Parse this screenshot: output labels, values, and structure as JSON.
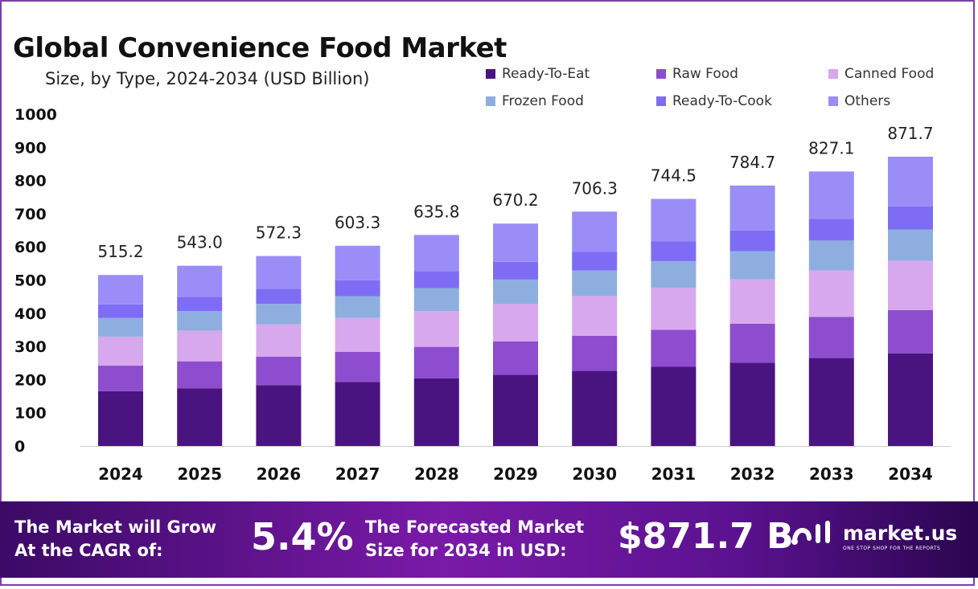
{
  "header": {
    "title": "Global Convenience Food Market",
    "subtitle": "Size, by Type, 2024-2034 (USD Billion)"
  },
  "chart_data": {
    "type": "bar",
    "stacked": true,
    "categories": [
      "2024",
      "2025",
      "2026",
      "2027",
      "2028",
      "2029",
      "2030",
      "2031",
      "2032",
      "2033",
      "2034"
    ],
    "totals": [
      "515.2",
      "543.0",
      "572.3",
      "603.3",
      "635.8",
      "670.2",
      "706.3",
      "744.5",
      "784.7",
      "827.1",
      "871.7"
    ],
    "series": [
      {
        "name": "Ready-To-Eat",
        "color": "#4a1480",
        "values": [
          165.0,
          173.9,
          183.3,
          193.2,
          203.6,
          214.6,
          226.2,
          238.5,
          251.3,
          264.9,
          279.2
        ]
      },
      {
        "name": "Raw Food",
        "color": "#8e4ccf",
        "values": [
          77.0,
          81.2,
          85.6,
          90.2,
          95.1,
          100.2,
          105.6,
          111.3,
          117.3,
          123.7,
          130.3
        ]
      },
      {
        "name": "Canned Food",
        "color": "#d7a8ee",
        "values": [
          87.5,
          92.2,
          97.2,
          102.5,
          108.0,
          113.8,
          120.0,
          126.4,
          133.3,
          140.5,
          148.1
        ]
      },
      {
        "name": "Frozen Food",
        "color": "#8faee0",
        "values": [
          56.0,
          59.0,
          62.2,
          65.6,
          69.1,
          72.9,
          76.8,
          80.9,
          85.3,
          89.9,
          94.8
        ]
      },
      {
        "name": "Ready-To-Cook",
        "color": "#7f6cf5",
        "values": [
          41.0,
          43.2,
          45.5,
          48.0,
          50.6,
          53.3,
          56.2,
          59.2,
          62.4,
          65.8,
          69.3
        ]
      },
      {
        "name": "Others",
        "color": "#9b8df8",
        "values": [
          88.7,
          93.5,
          98.5,
          103.8,
          109.4,
          115.4,
          121.5,
          128.2,
          135.1,
          142.3,
          150.0
        ]
      }
    ],
    "yticks": [
      "0",
      "100",
      "200",
      "300",
      "400",
      "500",
      "600",
      "700",
      "800",
      "900",
      "1000"
    ],
    "ylim": [
      0,
      1000
    ],
    "xlabel": "",
    "ylabel": "",
    "legend_position": "top-right"
  },
  "footer": {
    "cagr_label_line1": "The Market will Grow",
    "cagr_label_line2": "At the CAGR of:",
    "cagr_value": "5.4%",
    "size_label_line1": "The Forecasted Market",
    "size_label_line2": "Size for 2034 in USD:",
    "size_value": "$871.7 B",
    "brand_name": "market.us",
    "brand_tagline": "ONE STOP SHOP FOR THE REPORTS"
  }
}
